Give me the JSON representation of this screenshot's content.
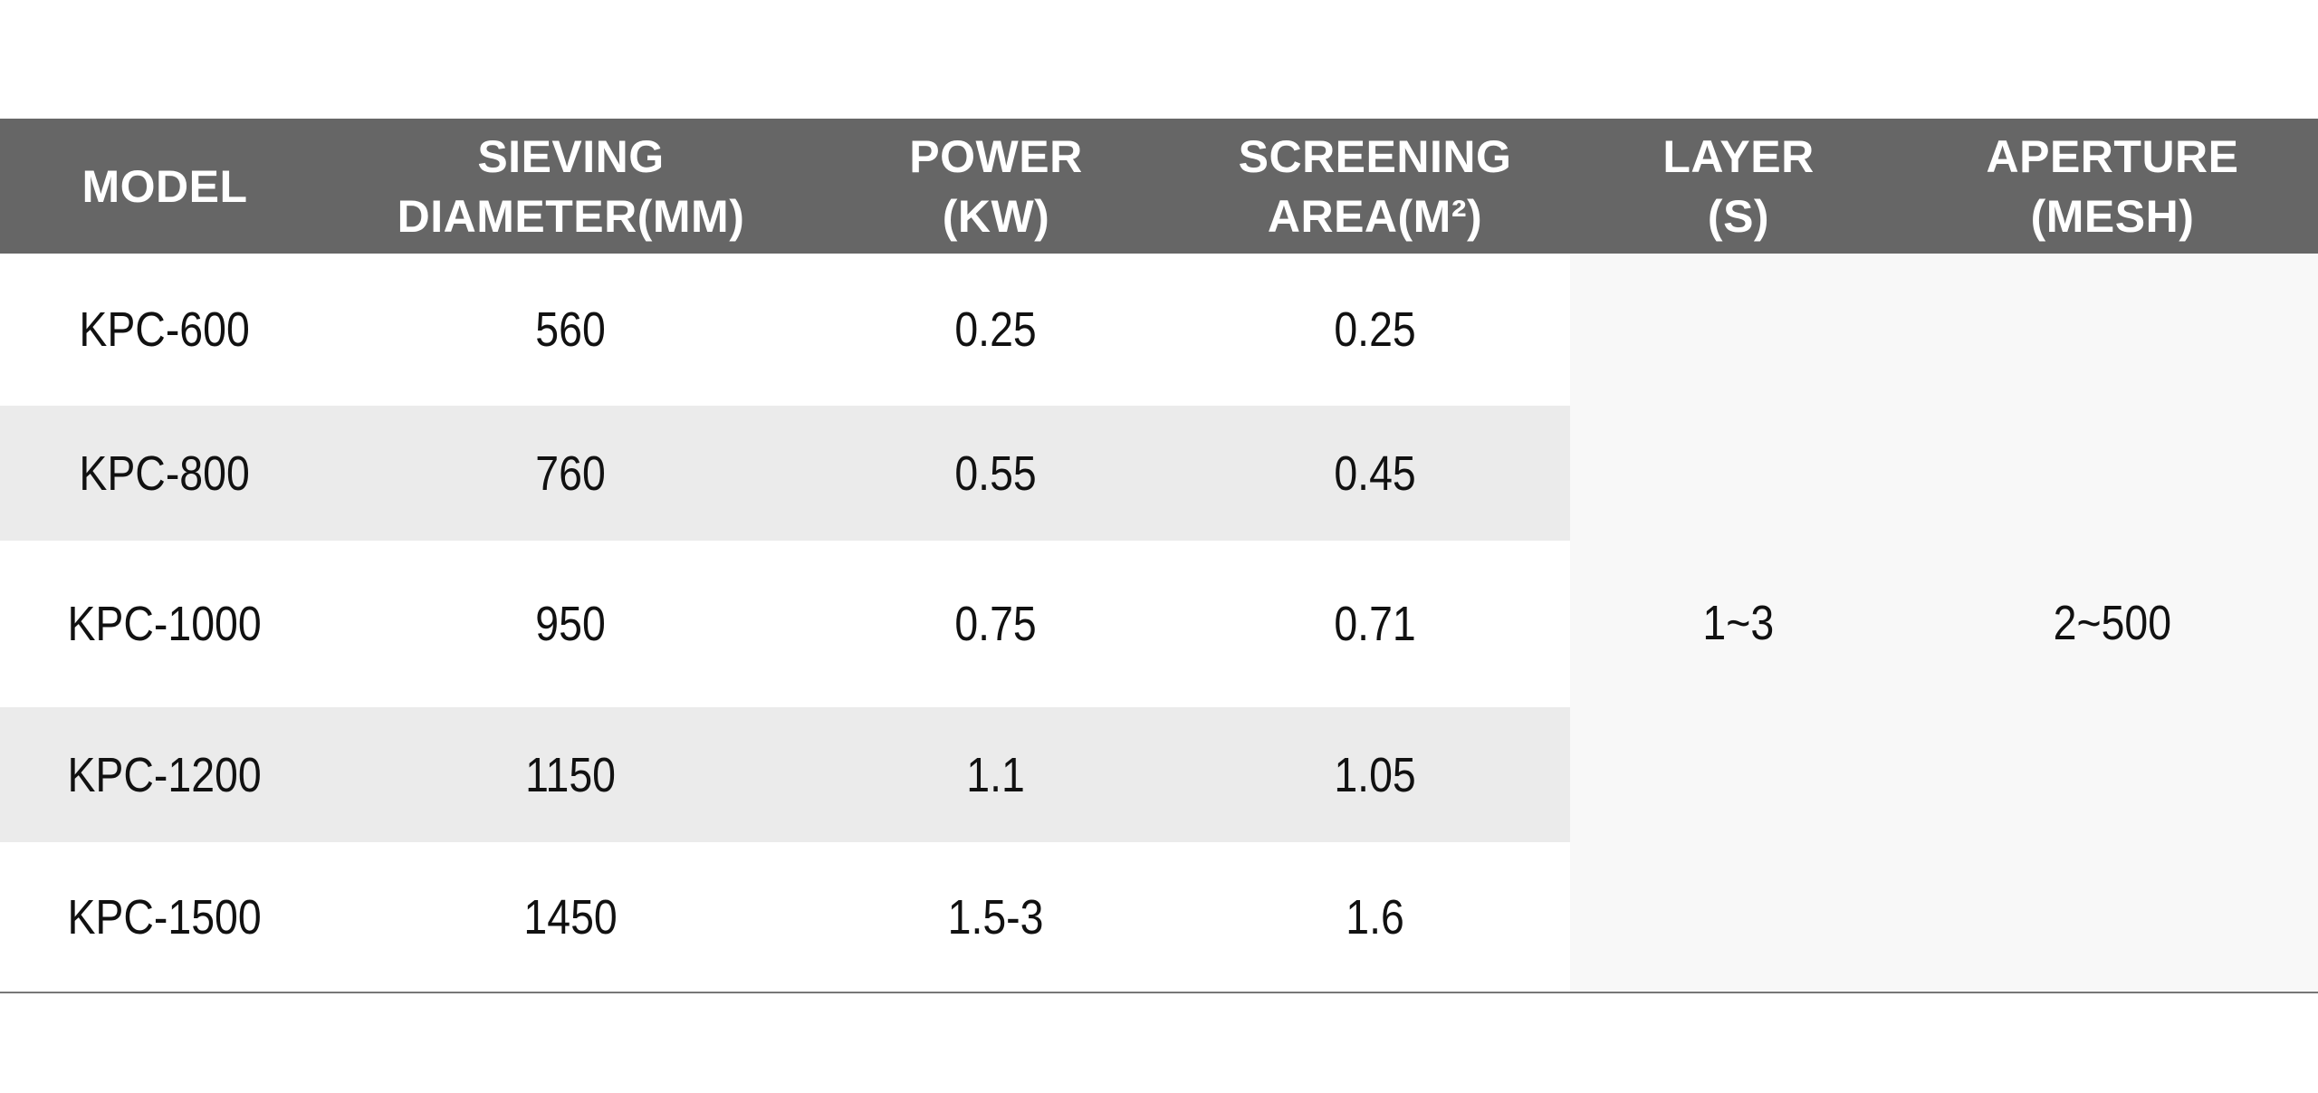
{
  "table": {
    "headers": [
      {
        "line1": "MODEL",
        "line2": ""
      },
      {
        "line1": "SIEVING",
        "line2": "DIAMETER(MM)"
      },
      {
        "line1": "POWER",
        "line2": "(KW)"
      },
      {
        "line1": "SCREENING",
        "line2": "AREA(M²)"
      },
      {
        "line1": "LAYER",
        "line2": "(S)"
      },
      {
        "line1": "APERTURE",
        "line2": "(MESH)"
      }
    ],
    "rows": [
      {
        "model": "KPC-600",
        "diameter": "560",
        "power": "0.25",
        "area": "0.25"
      },
      {
        "model": "KPC-800",
        "diameter": "760",
        "power": "0.55",
        "area": "0.45"
      },
      {
        "model": "KPC-1000",
        "diameter": "950",
        "power": "0.75",
        "area": "0.71"
      },
      {
        "model": "KPC-1200",
        "diameter": "1150",
        "power": "1.1",
        "area": "1.05"
      },
      {
        "model": "KPC-1500",
        "diameter": "1450",
        "power": "1.5-3",
        "area": "1.6"
      }
    ],
    "layer": "1~3",
    "aperture": "2~500"
  },
  "colors": {
    "header_bg": "#666666",
    "header_text": "#ffffff",
    "row_alt_bg": "#ebebeb",
    "merged_bg": "#f8f8f8",
    "body_text": "#111111"
  }
}
